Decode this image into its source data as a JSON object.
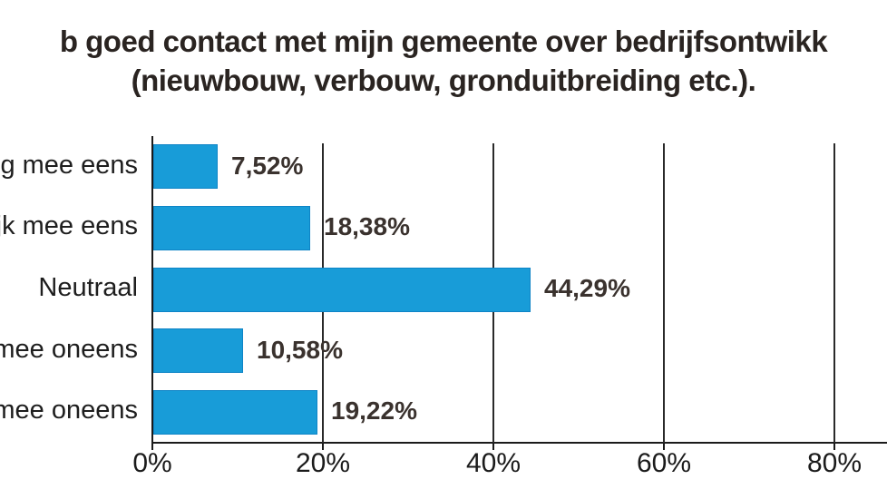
{
  "title": {
    "line1": "b goed contact met mijn gemeente over bedrijfsontwikk",
    "line2": "(nieuwbouw, verbouw, gronduitbreiding etc.)."
  },
  "chart_data": {
    "type": "bar",
    "orientation": "horizontal",
    "title": "b goed contact met mijn gemeente over bedrijfsontwikk (nieuwbouw, verbouw, gronduitbreiding etc.).",
    "categories": [
      "ig mee eens",
      "jk mee eens",
      "Neutraal",
      "mee oneens",
      "mee oneens"
    ],
    "values": [
      7.52,
      18.38,
      44.29,
      10.58,
      19.22
    ],
    "value_labels": [
      "7,52%",
      "18,38%",
      "44,29%",
      "10,58%",
      "19,22%"
    ],
    "x_ticks": [
      {
        "value": 0,
        "label": "0%"
      },
      {
        "value": 20,
        "label": "20%"
      },
      {
        "value": 40,
        "label": "40%"
      },
      {
        "value": 60,
        "label": "60%"
      },
      {
        "value": 80,
        "label": "80%"
      }
    ],
    "xlim": [
      0,
      86
    ],
    "grid": true,
    "legend_position": "none",
    "bar_color": "#189CD8",
    "bar_border_color": "#0E84C6",
    "text_color": "#2a2421",
    "axis_color": "#1b1b1b"
  }
}
